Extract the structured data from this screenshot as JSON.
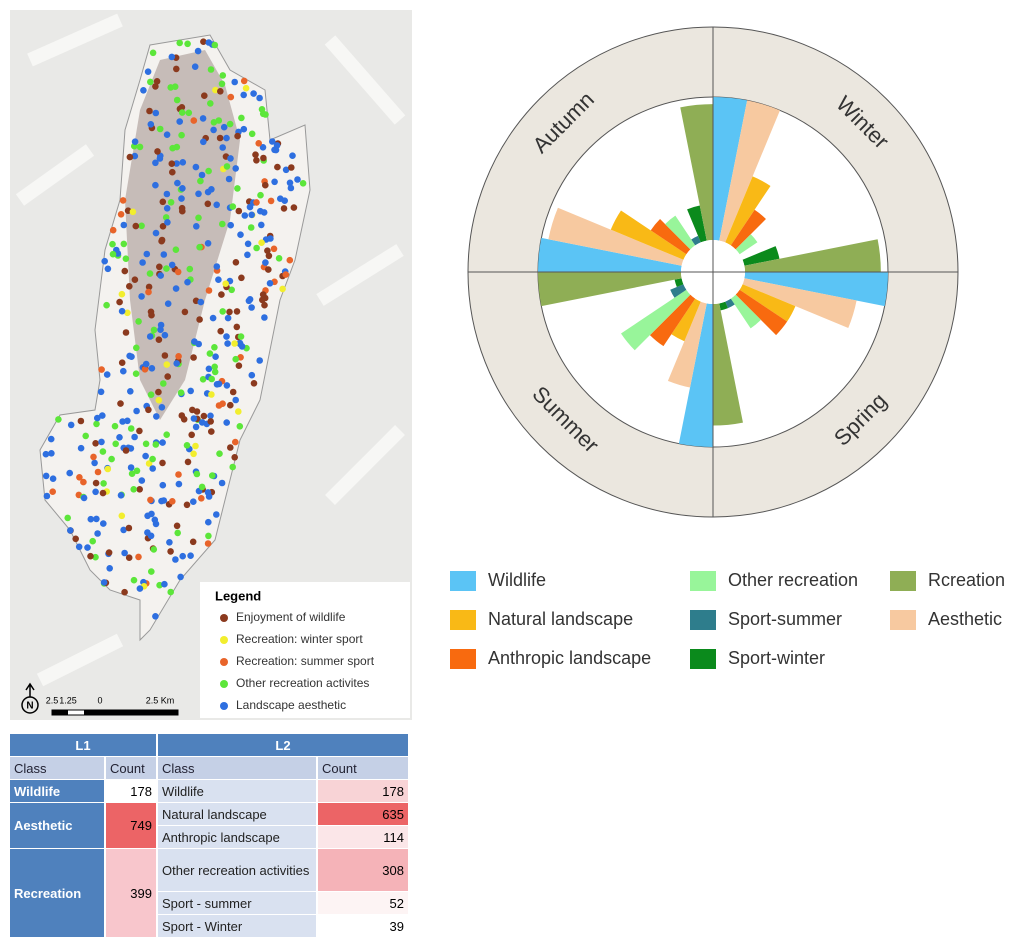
{
  "map": {
    "legend_title": "Legend",
    "legend": [
      {
        "label": "Enjoyment of wildlife",
        "color": "#8b3a1e"
      },
      {
        "label": "Recreation: winter sport",
        "color": "#f2ee2e"
      },
      {
        "label": "Recreation: summer sport",
        "color": "#e8642a"
      },
      {
        "label": "Other recreation activites",
        "color": "#5ce63a"
      },
      {
        "label": "Landscape aesthetic",
        "color": "#2e6fe0"
      }
    ],
    "scale_labels": [
      "2.5",
      "1.25",
      "0",
      "2.5 Km"
    ]
  },
  "rose": {
    "categories": [
      "Wildlife",
      "Natural landscape",
      "Anthropic landscape",
      "Other recreation",
      "Sport-summer",
      "Sport-winter",
      "Rcreation",
      "Aesthetic"
    ],
    "colors": [
      "#5bc4f5",
      "#f9b916",
      "#f86a0f",
      "#98f59a",
      "#2e7d8c",
      "#0b8a1c",
      "#8fae55",
      "#f7c9a0"
    ],
    "seasons": [
      {
        "name": "Autumn",
        "values": [
          100,
          55,
          30,
          25,
          5,
          25,
          95,
          95
        ]
      },
      {
        "name": "Winter",
        "values": [
          100,
          50,
          30,
          15,
          0,
          25,
          95,
          100
        ]
      },
      {
        "name": "Spring",
        "values": [
          100,
          40,
          40,
          25,
          5,
          5,
          85,
          80
        ]
      },
      {
        "name": "Summer",
        "values": [
          100,
          30,
          40,
          55,
          10,
          5,
          100,
          60
        ]
      }
    ]
  },
  "table": {
    "headers": [
      "L1",
      "L2"
    ],
    "subheaders": [
      "Class",
      "Count",
      "Class",
      "Count"
    ],
    "l1": [
      {
        "class": "Wildlife",
        "count": "178",
        "color": "#ffffff"
      },
      {
        "class": "Aesthetic",
        "count": "749",
        "color": "#ec6466"
      },
      {
        "class": "Recreation",
        "count": "399",
        "color": "#f8c6cc"
      }
    ],
    "l2": [
      {
        "class": "Wildlife",
        "count": "178",
        "color": "#f8d3d6"
      },
      {
        "class": "Natural landscape",
        "count": "635",
        "color": "#ec6466"
      },
      {
        "class": "Anthropic landscape",
        "count": "114",
        "color": "#fbe6e8"
      },
      {
        "class": "Other recreation activities",
        "count": "308",
        "color": "#f5b3b8"
      },
      {
        "class": "Sport - summer",
        "count": "52",
        "color": "#fdf4f4"
      },
      {
        "class": "Sport - Winter",
        "count": "39",
        "color": "#ffffff"
      }
    ]
  }
}
